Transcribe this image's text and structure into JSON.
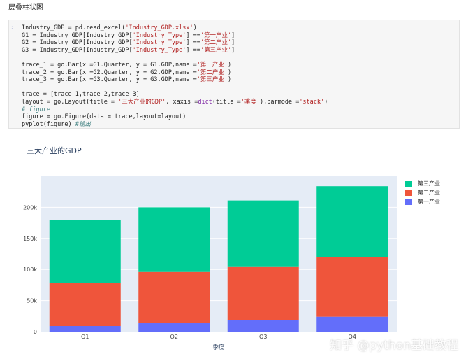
{
  "heading": "层叠柱状图",
  "notebook": {
    "prompt": ":",
    "lines": [
      [
        {
          "t": "Industry_GDP = pd.read_excel("
        },
        {
          "t": "'Industry_GDP.xlsx'",
          "c": "str"
        },
        {
          "t": ")"
        }
      ],
      [
        {
          "t": "G1 = Industry_GDP[Industry_GDP["
        },
        {
          "t": "'Industry_Type'",
          "c": "str"
        },
        {
          "t": "] =="
        },
        {
          "t": "'第一产业'",
          "c": "str"
        },
        {
          "t": "]"
        }
      ],
      [
        {
          "t": "G2 = Industry_GDP[Industry_GDP["
        },
        {
          "t": "'Industry_Type'",
          "c": "str"
        },
        {
          "t": "] =="
        },
        {
          "t": "'第二产业'",
          "c": "str"
        },
        {
          "t": "]"
        }
      ],
      [
        {
          "t": "G3 = Industry_GDP[Industry_GDP["
        },
        {
          "t": "'Industry_Type'",
          "c": "str"
        },
        {
          "t": "] =="
        },
        {
          "t": "'第三产业'",
          "c": "str"
        },
        {
          "t": "]"
        }
      ],
      [
        {
          "t": ""
        }
      ],
      [
        {
          "t": "trace_1 = go.Bar(x =G1.Quarter, y = G1.GDP,name ="
        },
        {
          "t": "'第一产业'",
          "c": "str"
        },
        {
          "t": ")"
        }
      ],
      [
        {
          "t": "trace_2 = go.Bar(x =G2.Quarter, y = G2.GDP,name ="
        },
        {
          "t": "'第二产业'",
          "c": "str"
        },
        {
          "t": ")"
        }
      ],
      [
        {
          "t": "trace_3 = go.Bar(x =G3.Quarter, y = G3.GDP,name ="
        },
        {
          "t": "'第三产业'",
          "c": "str"
        },
        {
          "t": ")"
        }
      ],
      [
        {
          "t": ""
        }
      ],
      [
        {
          "t": "trace = [trace_1,trace_2,trace_3]"
        }
      ],
      [
        {
          "t": "layout = go.Layout(title = "
        },
        {
          "t": "'三大产业的GDP'",
          "c": "str"
        },
        {
          "t": ", xaxis ="
        },
        {
          "t": "dict",
          "c": "kw"
        },
        {
          "t": "(title ="
        },
        {
          "t": "'季度'",
          "c": "str"
        },
        {
          "t": "),barmode ="
        },
        {
          "t": "'stack'",
          "c": "str"
        },
        {
          "t": ")"
        }
      ],
      [
        {
          "t": "# figure",
          "c": "cm"
        }
      ],
      [
        {
          "t": "figure = go.Figure(data = trace,layout=layout)"
        }
      ],
      [
        {
          "t": "pyplot(figure) "
        },
        {
          "t": "#输出",
          "c": "cm"
        }
      ]
    ]
  },
  "chart_data": {
    "type": "bar",
    "barmode": "stack",
    "title": "三大产业的GDP",
    "xlabel": "季度",
    "ylabel": "",
    "categories": [
      "Q1",
      "Q2",
      "Q3",
      "Q4"
    ],
    "series": [
      {
        "name": "第一产业",
        "values": [
          9000,
          13500,
          19000,
          24000
        ],
        "color": "#636efa"
      },
      {
        "name": "第二产业",
        "values": [
          69000,
          82500,
          86000,
          96000
        ],
        "color": "#ef553b"
      },
      {
        "name": "第三产业",
        "values": [
          102000,
          104000,
          106000,
          114000
        ],
        "color": "#00cc96"
      }
    ],
    "ylim": [
      0,
      250000
    ],
    "yticks": [
      0,
      50000,
      100000,
      150000,
      200000
    ],
    "ytick_labels": [
      "0",
      "50k",
      "100k",
      "150k",
      "200k"
    ],
    "grid": true,
    "plot_bg": "#e5ecf6",
    "legend_position": "top-right",
    "legend_order": [
      "第三产业",
      "第二产业",
      "第一产业"
    ]
  },
  "watermark": "知乎 @python基础教程"
}
